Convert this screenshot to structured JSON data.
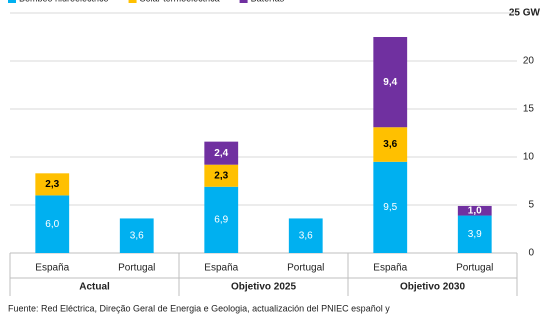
{
  "chart_data": {
    "type": "stacked-bar",
    "categories": [
      "España",
      "Portugal",
      "España",
      "Portugal",
      "España",
      "Portugal"
    ],
    "group_labels": [
      "Actual",
      "Objetivo 2025",
      "Objetivo 2030"
    ],
    "series": [
      {
        "name": "Bombeo hidroeléctrico",
        "color": "#00b0f0",
        "values": [
          6.0,
          3.6,
          6.9,
          3.6,
          9.5,
          3.9
        ],
        "value_labels": [
          "6,0",
          "3,6",
          "6,9",
          "3,6",
          "9,5",
          "3,9"
        ]
      },
      {
        "name": "Solar termoeléctrica",
        "color": "#ffc000",
        "values": [
          2.3,
          null,
          2.3,
          null,
          3.6,
          null
        ],
        "value_labels": [
          "2,3",
          null,
          "2,3",
          null,
          "3,6",
          null
        ]
      },
      {
        "name": "Baterías",
        "color": "#7030a0",
        "values": [
          null,
          null,
          2.4,
          null,
          9.4,
          1.0
        ],
        "value_labels": [
          null,
          null,
          "2,4",
          null,
          "9,4",
          "1,0"
        ]
      }
    ],
    "ylim": [
      0,
      25
    ],
    "yticks": [
      0,
      5,
      10,
      15,
      20,
      {
        "value": 25,
        "label": "25 GW"
      }
    ],
    "grid": true,
    "source": "Fuente: Red Eléctrica, Direção Geral de Energia e Geologia, actualización del PNIEC español y"
  }
}
